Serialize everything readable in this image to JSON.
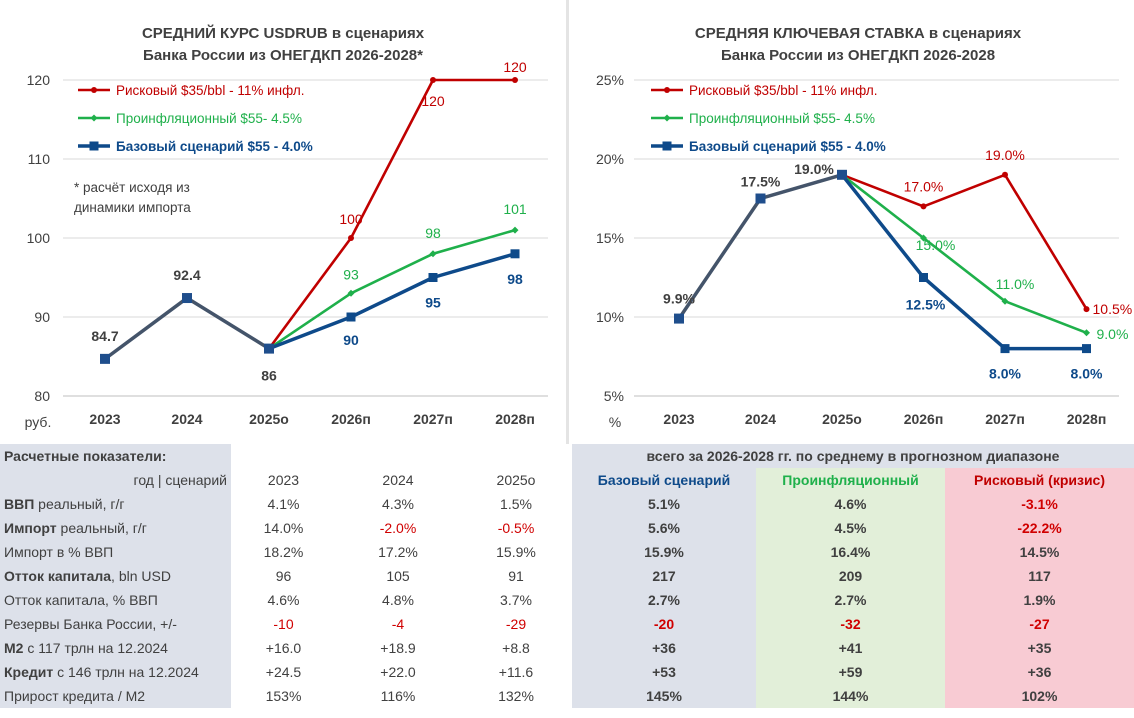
{
  "chart_data": [
    {
      "type": "line",
      "title_lines": [
        "СРЕДНИЙ КУРС USDRUB в сценариях",
        "Банка России из ОНЕГДКП 2026-2028*"
      ],
      "categories": [
        "2023",
        "2024",
        "2025о",
        "2026п",
        "2027п",
        "2028п"
      ],
      "ylabel": "руб.",
      "ylim": [
        80,
        120
      ],
      "yticks": [
        "80",
        "90",
        "100",
        "110",
        "120"
      ],
      "grid": true,
      "legend_position": "top-left",
      "note_lines": [
        "* расчёт исходя из",
        "динамики импорта"
      ],
      "history": {
        "values": [
          84.7,
          92.4,
          86
        ],
        "labels": [
          "84.7",
          "92.4",
          "86"
        ],
        "color": "#44546a"
      },
      "series": [
        {
          "name": "Рисковый $35/bbl - 11% инфл.",
          "color": "#c00000",
          "marker": "circle",
          "values": [
            null,
            null,
            86,
            100,
            120,
            120
          ],
          "labels": [
            "",
            "",
            "",
            "100",
            "120",
            "120"
          ]
        },
        {
          "name": "Проинфляционный $55- 4.5%",
          "color": "#1fb04b",
          "marker": "diamond",
          "values": [
            null,
            null,
            86,
            93,
            98,
            101
          ],
          "labels": [
            "",
            "",
            "",
            "93",
            "98",
            "101"
          ]
        },
        {
          "name": "Базовый сценарий $55 - 4.0%",
          "color": "#0e4a8a",
          "marker": "square",
          "values": [
            null,
            null,
            86,
            90,
            95,
            98
          ],
          "labels": [
            "",
            "",
            "",
            "90",
            "95",
            "98"
          ]
        }
      ]
    },
    {
      "type": "line",
      "title_lines": [
        "СРЕДНЯЯ КЛЮЧЕВАЯ СТАВКА в сценариях",
        "Банка России из ОНЕГДКП 2026-2028"
      ],
      "categories": [
        "2023",
        "2024",
        "2025о",
        "2026п",
        "2027п",
        "2028п"
      ],
      "ylabel": "%",
      "ylim": [
        5,
        25
      ],
      "yticks": [
        "5%",
        "10%",
        "15%",
        "20%",
        "25%"
      ],
      "grid": true,
      "legend_position": "top-left",
      "history": {
        "values": [
          9.9,
          17.5,
          19.0
        ],
        "labels": [
          "9.9%",
          "17.5%",
          "19.0%"
        ],
        "color": "#44546a"
      },
      "series": [
        {
          "name": "Рисковый $35/bbl - 11% инфл.",
          "color": "#c00000",
          "marker": "circle",
          "values": [
            null,
            null,
            19.0,
            17.0,
            19.0,
            10.5
          ],
          "labels": [
            "",
            "",
            "",
            "17.0%",
            "19.0%",
            "10.5%"
          ]
        },
        {
          "name": "Проинфляционный $55- 4.5%",
          "color": "#1fb04b",
          "marker": "diamond",
          "values": [
            null,
            null,
            19.0,
            15.0,
            11.0,
            9.0
          ],
          "labels": [
            "",
            "",
            "",
            "15.0%",
            "11.0%",
            "9.0%"
          ]
        },
        {
          "name": "Базовый сценарий $55 - 4.0%",
          "color": "#0e4a8a",
          "marker": "square",
          "values": [
            null,
            null,
            19.0,
            12.5,
            8.0,
            8.0
          ],
          "labels": [
            "",
            "",
            "",
            "12.5%",
            "8.0%",
            "8.0%"
          ]
        }
      ]
    }
  ],
  "table": {
    "title": "Расчетные показатели:",
    "subheader_right": "всего за 2026-2028 гг. по среднему в прогнозном диапазоне",
    "header_row_label": "год | сценарий",
    "year_headers": [
      "2023",
      "2024",
      "2025о"
    ],
    "scenario_headers": [
      "Базовый сценарий",
      "Проинфляционный",
      "Рисковый (кризис)"
    ],
    "scenario_header_colors": [
      "#0e4a8a",
      "#1fb04b",
      "#c00000"
    ],
    "rows": [
      {
        "label_bold": "ВВП",
        "label_rest": " реальный, г/г",
        "years": [
          "4.1%",
          "4.3%",
          "1.5%"
        ],
        "scen": [
          "5.1%",
          "4.6%",
          "-3.1%"
        ],
        "neg_years": [
          false,
          false,
          false
        ],
        "neg_scen": [
          false,
          false,
          true
        ]
      },
      {
        "label_bold": "Импорт",
        "label_rest": " реальный, г/г",
        "years": [
          "14.0%",
          "-2.0%",
          "-0.5%"
        ],
        "scen": [
          "5.6%",
          "4.5%",
          "-22.2%"
        ],
        "neg_years": [
          false,
          true,
          true
        ],
        "neg_scen": [
          false,
          false,
          true
        ]
      },
      {
        "label_bold": "",
        "label_rest": "Импорт в % ВВП",
        "years": [
          "18.2%",
          "17.2%",
          "15.9%"
        ],
        "scen": [
          "15.9%",
          "16.4%",
          "14.5%"
        ],
        "neg_years": [
          false,
          false,
          false
        ],
        "neg_scen": [
          false,
          false,
          false
        ]
      },
      {
        "label_bold": "Отток капитала",
        "label_rest": ", bln USD",
        "years": [
          "96",
          "105",
          "91"
        ],
        "scen": [
          "217",
          "209",
          "117"
        ],
        "neg_years": [
          false,
          false,
          false
        ],
        "neg_scen": [
          false,
          false,
          false
        ]
      },
      {
        "label_bold": "",
        "label_rest": "Отток капитала, % ВВП",
        "years": [
          "4.6%",
          "4.8%",
          "3.7%"
        ],
        "scen": [
          "2.7%",
          "2.7%",
          "1.9%"
        ],
        "neg_years": [
          false,
          false,
          false
        ],
        "neg_scen": [
          false,
          false,
          false
        ]
      },
      {
        "label_bold": "",
        "label_rest": "Резервы Банка России, +/-",
        "years": [
          "-10",
          "-4",
          "-29"
        ],
        "scen": [
          "-20",
          "-32",
          "-27"
        ],
        "neg_years": [
          true,
          true,
          true
        ],
        "neg_scen": [
          true,
          true,
          true
        ]
      },
      {
        "label_bold": "М2",
        "label_rest": " с 117 трлн на 12.2024",
        "years": [
          "+16.0",
          "+18.9",
          "+8.8"
        ],
        "scen": [
          "+36",
          "+41",
          "+35"
        ],
        "neg_years": [
          false,
          false,
          false
        ],
        "neg_scen": [
          false,
          false,
          false
        ]
      },
      {
        "label_bold": "Кредит",
        "label_rest": " с 146 трлн на 12.2024",
        "years": [
          "+24.5",
          "+22.0",
          "+11.6"
        ],
        "scen": [
          "+53",
          "+59",
          "+36"
        ],
        "neg_years": [
          false,
          false,
          false
        ],
        "neg_scen": [
          false,
          false,
          false
        ]
      },
      {
        "label_bold": "",
        "label_rest": "Прирост кредита / М2",
        "years": [
          "153%",
          "116%",
          "132%"
        ],
        "scen": [
          "145%",
          "144%",
          "102%"
        ],
        "neg_years": [
          false,
          false,
          false
        ],
        "neg_scen": [
          false,
          false,
          false
        ]
      }
    ]
  }
}
